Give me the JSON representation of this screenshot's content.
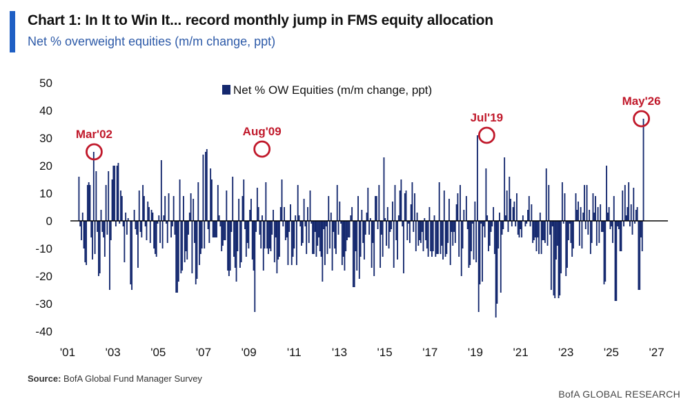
{
  "header": {
    "title": "Chart 1: In It to Win It... record monthly jump in FMS equity allocation",
    "subtitle": "Net % overweight equities (m/m change, ppt)",
    "accent_color": "#1f5fc4"
  },
  "footer": {
    "source_label": "Source:",
    "source_text": "BofA Global Fund Manager Survey",
    "brand": "BofA GLOBAL RESEARCH"
  },
  "chart_data": {
    "type": "bar",
    "series": [
      {
        "name": "Net % OW Equities (m/m change, ppt)",
        "color": "#14286e",
        "x_start_year": 2001.5,
        "x_end_year": 2026.42,
        "values": [
          16,
          -2,
          -7,
          3,
          -10,
          -15,
          -16,
          13,
          14,
          13,
          -6,
          -14,
          25,
          -12,
          18,
          -4,
          -20,
          -19,
          4,
          -4,
          -6,
          -13,
          13,
          -5,
          18,
          -25,
          -7,
          15,
          20,
          20,
          -2,
          20,
          21,
          -1,
          11,
          9,
          -2,
          -15,
          3,
          -5,
          1,
          0,
          -23,
          -25,
          0,
          4,
          -3,
          -5,
          -17,
          11,
          -4,
          -6,
          13,
          9,
          -2,
          -7,
          7,
          5,
          -8,
          4,
          3,
          -10,
          -12,
          -13,
          -1,
          2,
          -8,
          22,
          -10,
          2,
          9,
          -1,
          -8,
          10,
          0,
          -6,
          -2,
          9,
          -5,
          -26,
          -26,
          -22,
          15,
          -19,
          -18,
          9,
          -15,
          -11,
          -14,
          -5,
          3,
          10,
          -19,
          8,
          -8,
          -23,
          -21,
          14,
          -16,
          -12,
          -10,
          24,
          -10,
          25,
          26,
          -3,
          -8,
          19,
          15,
          -6,
          -6,
          -6,
          -6,
          13,
          2,
          -2,
          -11,
          -9,
          -7,
          -7,
          11,
          -18,
          -20,
          -18,
          -4,
          16,
          -13,
          -17,
          -22,
          -11,
          8,
          -17,
          -15,
          9,
          15,
          -3,
          -13,
          -8,
          -10,
          4,
          8,
          -14,
          -18,
          -33,
          -4,
          12,
          5,
          -5,
          -10,
          2,
          -18,
          -10,
          14,
          -10,
          -12,
          -10,
          -11,
          -5,
          4,
          -15,
          -6,
          -19,
          -14,
          -13,
          5,
          15,
          -2,
          5,
          -7,
          -6,
          -16,
          -4,
          6,
          -16,
          -13,
          -10,
          2,
          -16,
          13,
          2,
          -2,
          -9,
          -8,
          8,
          -2,
          -12,
          5,
          -8,
          11,
          -1,
          -12,
          -12,
          -4,
          -13,
          -9,
          -6,
          -11,
          -13,
          -22,
          -3,
          -16,
          -2,
          -12,
          9,
          -10,
          3,
          -18,
          -4,
          -10,
          -12,
          13,
          -5,
          7,
          -1,
          -16,
          -13,
          -18,
          -11,
          -7,
          -6,
          -6,
          2,
          5,
          -24,
          -24,
          -11,
          -18,
          9,
          -21,
          -13,
          4,
          -8,
          -14,
          -5,
          3,
          12,
          -5,
          1,
          -17,
          -8,
          -20,
          9,
          9,
          -3,
          13,
          -17,
          -5,
          -13,
          23,
          1,
          -9,
          5,
          -10,
          -4,
          -3,
          7,
          -17,
          13,
          -7,
          -14,
          2,
          11,
          15,
          -2,
          -19,
          10,
          11,
          -7,
          -1,
          -8,
          6,
          14,
          -4,
          10,
          -11,
          3,
          -9,
          -7,
          -8,
          -4,
          -11,
          1,
          -7,
          -10,
          -13,
          5,
          -11,
          -13,
          -11,
          2,
          -13,
          -12,
          -12,
          14,
          -12,
          -9,
          -14,
          11,
          -13,
          -12,
          -8,
          8,
          -16,
          -4,
          -9,
          -4,
          -8,
          6,
          10,
          -13,
          13,
          -20,
          -10,
          4,
          0,
          9,
          -3,
          -17,
          -16,
          -11,
          -1,
          -14,
          7,
          -15,
          31,
          -33,
          -23,
          -1,
          -22,
          -2,
          -6,
          19,
          2,
          -11,
          -9,
          -4,
          -2,
          5,
          -12,
          -35,
          -30,
          -10,
          3,
          -26,
          -5,
          -3,
          23,
          2,
          11,
          -4,
          16,
          8,
          -2,
          5,
          7,
          -2,
          10,
          -5,
          -6,
          -3,
          -6,
          2,
          0,
          -2,
          -1,
          4,
          9,
          -2,
          6,
          -8,
          -7,
          -6,
          -11,
          -6,
          -12,
          3,
          -12,
          -7,
          -7,
          -8,
          19,
          -9,
          13,
          -5,
          -25,
          -2,
          -27,
          -28,
          -14,
          -9,
          -28,
          -27,
          -19,
          14,
          -1,
          10,
          -20,
          -17,
          -7,
          -1,
          -8,
          -13,
          -10,
          0,
          10,
          4,
          7,
          -9,
          5,
          -10,
          3,
          13,
          -3,
          13,
          -5,
          4,
          -12,
          -8,
          10,
          3,
          9,
          -9,
          5,
          -8,
          6,
          -4,
          -4,
          -23,
          -22,
          20,
          3,
          5,
          -3,
          -2,
          -8,
          9,
          -29,
          -29,
          -2,
          -3,
          -11,
          -11,
          11,
          -2,
          13,
          2,
          5,
          14,
          -2,
          6,
          -5,
          12,
          -1,
          4,
          5,
          -25,
          -25,
          -6,
          -11,
          37
        ],
        "ylim": [
          -40,
          50
        ],
        "yticks": [
          -40,
          -30,
          -20,
          -10,
          0,
          10,
          20,
          30,
          40,
          50
        ],
        "xlim_year": [
          2001,
          2027.5
        ],
        "xtick_years": [
          2001,
          2003,
          2005,
          2007,
          2009,
          2011,
          2013,
          2015,
          2017,
          2019,
          2021,
          2023,
          2025,
          2027
        ],
        "xtick_labels": [
          "'01",
          "'03",
          "'05",
          "'07",
          "'09",
          "'11",
          "'13",
          "'15",
          "'17",
          "'19",
          "'21",
          "'23",
          "'25",
          "'27"
        ]
      }
    ],
    "legend": {
      "label": "Net % OW Equities (m/m change, ppt)",
      "position": "top-center"
    },
    "annotations": [
      {
        "label": "Mar'02",
        "year": 2002.17,
        "value": 25
      },
      {
        "label": "Aug'09",
        "year": 2009.58,
        "value": 26
      },
      {
        "label": "Jul'19",
        "year": 2019.5,
        "value": 31
      },
      {
        "label": "May'26",
        "year": 2026.33,
        "value": 37
      }
    ],
    "annotation_color": "#c0182a",
    "grid": false
  }
}
